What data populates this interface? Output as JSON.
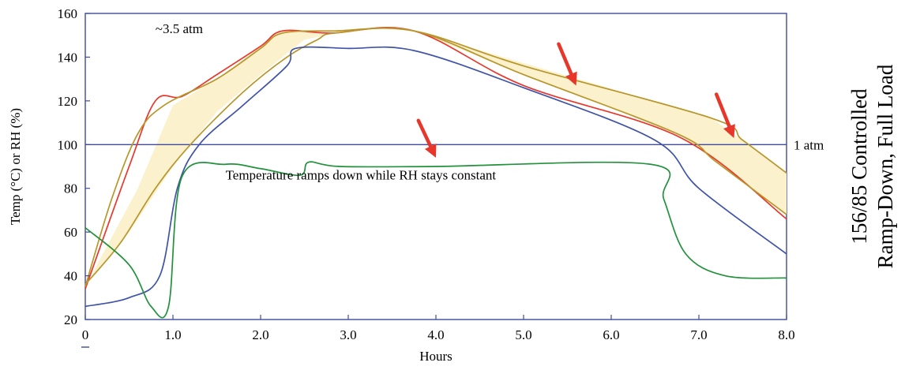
{
  "chart_data": {
    "type": "line",
    "title": "",
    "side_title": [
      "156/85 Controlled",
      "Ramp-Down, Full Load"
    ],
    "xlabel": "Hours",
    "ylabel": "Temp (°C) or RH (%)",
    "xlim": [
      0,
      8
    ],
    "ylim": [
      20,
      160
    ],
    "x_ticks": [
      "0",
      "1.0",
      "2.0",
      "3.0",
      "4.0",
      "5.0",
      "6.0",
      "7.0",
      "8.0"
    ],
    "x_tick_values": [
      0,
      1,
      2,
      3,
      4,
      5,
      6,
      7,
      8
    ],
    "y_ticks": [
      "20",
      "40",
      "60",
      "80",
      "100",
      "120",
      "140",
      "160"
    ],
    "y_tick_values": [
      20,
      40,
      60,
      80,
      100,
      120,
      140,
      160
    ],
    "grid": false,
    "reference_line": {
      "y": 100,
      "label": "1 atm"
    },
    "annotations": [
      {
        "text": "~3.5 atm",
        "x": 0.8,
        "y": 151
      },
      {
        "text": "Temperature ramps down while RH stays constant",
        "x": 1.6,
        "y": 84
      }
    ],
    "band": {
      "upper": [
        [
          0,
          35
        ],
        [
          0.6,
          80
        ],
        [
          1.0,
          118
        ],
        [
          1.5,
          130
        ],
        [
          2.0,
          145
        ],
        [
          2.2,
          152
        ],
        [
          2.8,
          151
        ],
        [
          3.75,
          152
        ],
        [
          7.15,
          112
        ],
        [
          8,
          87
        ]
      ],
      "lower": [
        [
          0,
          36
        ],
        [
          0.5,
          60
        ],
        [
          1.0,
          90
        ],
        [
          1.5,
          115
        ],
        [
          2.0,
          132
        ],
        [
          2.5,
          148
        ],
        [
          2.85,
          151
        ],
        [
          3.75,
          152
        ],
        [
          6.8,
          104
        ],
        [
          8,
          68
        ]
      ]
    },
    "series": [
      {
        "color": "#e8372a",
        "points": [
          [
            0,
            34
          ],
          [
            0.5,
            90
          ],
          [
            0.8,
            120
          ],
          [
            1.1,
            122
          ],
          [
            1.5,
            132
          ],
          [
            2.0,
            145
          ],
          [
            2.25,
            152
          ],
          [
            2.8,
            151
          ],
          [
            3.75,
            152
          ],
          [
            5.0,
            127
          ],
          [
            6.8,
            103
          ],
          [
            8,
            66
          ]
        ]
      },
      {
        "color": "#b8962b",
        "points": [
          [
            0,
            35
          ],
          [
            0.3,
            75
          ],
          [
            0.6,
            105
          ],
          [
            0.9,
            118
          ],
          [
            1.5,
            130
          ],
          [
            2.0,
            144
          ],
          [
            2.25,
            151
          ],
          [
            2.85,
            152
          ],
          [
            3.75,
            152
          ],
          [
            5.0,
            136
          ],
          [
            7.15,
            112
          ],
          [
            7.5,
            102
          ],
          [
            8,
            87
          ]
        ]
      },
      {
        "color": "#b8962b",
        "points": [
          [
            0,
            36
          ],
          [
            0.4,
            55
          ],
          [
            0.8,
            80
          ],
          [
            1.2,
            100
          ],
          [
            1.8,
            124
          ],
          [
            2.3,
            140
          ],
          [
            2.65,
            148
          ],
          [
            2.85,
            151
          ],
          [
            3.75,
            152
          ],
          [
            5.0,
            132
          ],
          [
            6.75,
            105
          ],
          [
            7.2,
            92
          ],
          [
            8,
            68
          ]
        ]
      },
      {
        "color": "#3f54a8",
        "points": [
          [
            0,
            26
          ],
          [
            0.5,
            30
          ],
          [
            0.85,
            40
          ],
          [
            1.05,
            80
          ],
          [
            1.3,
            100
          ],
          [
            1.8,
            118
          ],
          [
            2.3,
            136
          ],
          [
            2.4,
            144
          ],
          [
            3.0,
            144
          ],
          [
            3.75,
            143
          ],
          [
            5.0,
            126
          ],
          [
            6.5,
            102
          ],
          [
            7.0,
            80
          ],
          [
            8,
            50
          ]
        ]
      },
      {
        "color": "#22913b",
        "points": [
          [
            0,
            62
          ],
          [
            0.5,
            45
          ],
          [
            0.75,
            26
          ],
          [
            0.95,
            26
          ],
          [
            1.1,
            85
          ],
          [
            1.6,
            91
          ],
          [
            2.0,
            89
          ],
          [
            2.45,
            86
          ],
          [
            2.55,
            92
          ],
          [
            2.9,
            90
          ],
          [
            4.0,
            90
          ],
          [
            6.45,
            91
          ],
          [
            6.6,
            75
          ],
          [
            6.85,
            50
          ],
          [
            7.3,
            40
          ],
          [
            8,
            39
          ]
        ]
      }
    ],
    "arrows": [
      {
        "color": "#e8372a",
        "from": [
          5.4,
          146
        ],
        "to": [
          5.6,
          127
        ]
      },
      {
        "color": "#e8372a",
        "from": [
          3.8,
          111
        ],
        "to": [
          4.0,
          94
        ]
      },
      {
        "color": "#e8372a",
        "from": [
          7.2,
          123
        ],
        "to": [
          7.4,
          103
        ]
      }
    ]
  }
}
